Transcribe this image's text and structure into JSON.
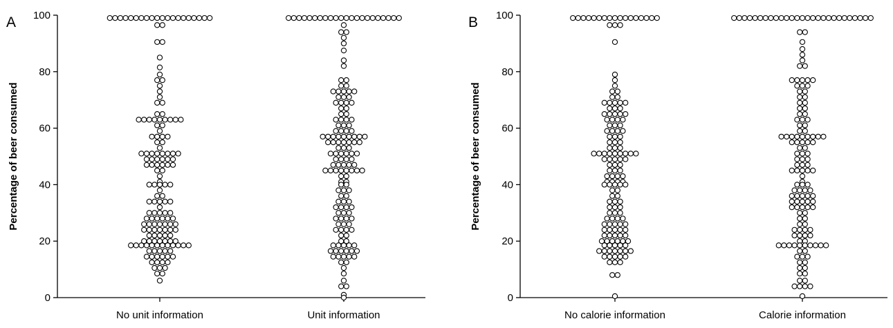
{
  "chart_data": [
    {
      "panel": "A",
      "type": "scatter",
      "ylabel": "Percentage of beer consumed",
      "ylim": [
        0,
        100
      ],
      "yticks": [
        "0",
        "20",
        "40",
        "60",
        "80",
        "100"
      ],
      "categories": [
        "No unit information",
        "Unit information"
      ],
      "series": [
        {
          "category": "No unit information",
          "values": [
            99,
            99,
            99,
            99,
            99,
            99,
            99,
            99,
            99,
            99,
            99,
            99,
            99,
            99,
            99,
            99,
            99,
            99,
            99,
            99,
            96.5,
            96.5,
            90.5,
            90.5,
            85,
            81.5,
            79,
            77,
            77,
            75,
            73,
            71,
            69,
            69,
            65,
            65,
            63,
            63,
            63,
            63,
            63,
            63,
            63,
            63,
            63,
            61,
            61,
            59,
            57,
            57,
            57,
            57,
            55,
            55,
            53,
            51,
            51,
            51,
            51,
            51,
            51,
            51,
            51,
            49,
            49,
            49,
            49,
            49,
            49,
            47,
            47,
            47,
            47,
            47,
            47,
            45,
            45,
            43,
            41,
            40,
            40,
            40,
            40,
            40,
            38,
            36,
            36,
            34,
            34,
            34,
            34,
            34,
            32,
            30,
            30,
            30,
            30,
            30,
            28,
            28,
            28,
            28,
            28,
            28,
            26,
            26,
            26,
            26,
            26,
            26,
            26,
            24,
            24,
            24,
            24,
            24,
            24,
            24,
            22,
            22,
            22,
            22,
            22,
            20,
            20,
            20,
            20,
            20,
            20,
            20,
            18.5,
            18.5,
            18.5,
            18.5,
            18.5,
            18.5,
            18.5,
            18.5,
            18.5,
            18.5,
            18.5,
            18.5,
            16.5,
            16.5,
            16.5,
            16.5,
            16.5,
            14.5,
            14.5,
            14.5,
            14.5,
            14.5,
            14.5,
            12.5,
            12.5,
            12.5,
            12.5,
            10.5,
            10.5,
            10.5,
            8.5,
            8.5,
            6
          ]
        },
        {
          "category": "Unit information",
          "values": [
            99,
            99,
            99,
            99,
            99,
            99,
            99,
            99,
            99,
            99,
            99,
            99,
            99,
            99,
            99,
            99,
            99,
            99,
            99,
            99,
            99,
            99,
            96.5,
            94,
            94,
            92,
            90,
            87.5,
            84,
            82,
            77,
            77,
            75,
            75,
            73,
            73,
            73,
            73,
            73,
            71,
            71,
            71,
            69,
            69,
            69,
            69,
            67,
            67,
            65,
            65,
            63,
            63,
            63,
            63,
            61,
            61,
            61,
            59,
            59,
            59,
            59,
            57,
            57,
            57,
            57,
            57,
            57,
            57,
            57,
            57,
            55,
            55,
            55,
            55,
            55,
            55,
            55,
            53,
            53,
            53,
            51,
            51,
            51,
            51,
            51,
            51,
            49,
            49,
            49,
            49,
            47,
            47,
            47,
            47,
            47,
            45,
            45,
            45,
            45,
            45,
            45,
            45,
            45,
            43,
            43,
            41,
            41,
            40,
            40,
            38,
            38,
            38,
            36,
            36,
            34,
            34,
            34,
            32,
            32,
            32,
            32,
            30,
            30,
            30,
            28,
            28,
            28,
            28,
            26,
            26,
            26,
            24,
            24,
            24,
            24,
            22,
            22,
            20,
            20,
            18.5,
            18.5,
            18.5,
            18.5,
            18.5,
            16.5,
            16.5,
            16.5,
            16.5,
            16.5,
            16.5,
            14.5,
            14.5,
            14.5,
            14.5,
            14.5,
            12.5,
            12.5,
            10.5,
            8.5,
            6,
            4,
            4,
            1,
            0
          ]
        }
      ]
    },
    {
      "panel": "B",
      "type": "scatter",
      "ylabel": "Percentage of beer consumed",
      "ylim": [
        0,
        100
      ],
      "yticks": [
        "0",
        "20",
        "40",
        "60",
        "80",
        "100"
      ],
      "categories": [
        "No calorie information",
        "Calorie information"
      ],
      "series": [
        {
          "category": "No calorie information",
          "values": [
            99,
            99,
            99,
            99,
            99,
            99,
            99,
            99,
            99,
            99,
            99,
            99,
            99,
            99,
            99,
            99,
            99,
            96.5,
            96.5,
            96.5,
            90.5,
            79,
            77,
            75,
            73,
            73,
            71,
            71,
            69,
            69,
            69,
            69,
            69,
            67,
            67,
            67,
            65,
            65,
            65,
            65,
            65,
            63,
            63,
            63,
            63,
            61,
            61,
            61,
            59,
            59,
            59,
            59,
            57,
            57,
            57,
            55,
            55,
            55,
            53,
            53,
            53,
            51,
            51,
            51,
            51,
            51,
            51,
            51,
            51,
            51,
            49,
            49,
            49,
            49,
            49,
            47,
            47,
            47,
            45,
            45,
            45,
            43,
            43,
            43,
            43,
            41,
            41,
            41,
            41,
            40,
            40,
            40,
            40,
            40,
            38,
            38,
            36,
            36,
            34,
            34,
            34,
            32,
            32,
            32,
            30,
            30,
            30,
            28,
            28,
            28,
            28,
            26,
            26,
            26,
            26,
            26,
            24,
            24,
            24,
            24,
            24,
            22,
            22,
            22,
            22,
            22,
            20,
            20,
            20,
            20,
            20,
            20,
            18.5,
            18.5,
            18.5,
            18.5,
            18.5,
            16.5,
            16.5,
            16.5,
            16.5,
            16.5,
            16.5,
            16.5,
            14.5,
            14.5,
            14.5,
            14.5,
            14.5,
            12.5,
            12.5,
            12.5,
            8,
            8,
            0.5
          ]
        },
        {
          "category": "Calorie information",
          "values": [
            99,
            99,
            99,
            99,
            99,
            99,
            99,
            99,
            99,
            99,
            99,
            99,
            99,
            99,
            99,
            99,
            99,
            99,
            99,
            99,
            99,
            99,
            99,
            99,
            99,
            99,
            99,
            94,
            94,
            90.5,
            88,
            86,
            84,
            82,
            82,
            77,
            77,
            77,
            77,
            77,
            75,
            75,
            75,
            73,
            73,
            71,
            71,
            69,
            69,
            67,
            67,
            65,
            65,
            63,
            63,
            63,
            61,
            61,
            59,
            59,
            57,
            57,
            57,
            57,
            57,
            57,
            57,
            57,
            57,
            55,
            55,
            55,
            55,
            55,
            53,
            53,
            51,
            51,
            51,
            49,
            49,
            49,
            47,
            47,
            47,
            45,
            45,
            45,
            45,
            45,
            43,
            41,
            40,
            40,
            40,
            38,
            38,
            38,
            38,
            36,
            36,
            36,
            36,
            36,
            34,
            34,
            34,
            34,
            34,
            32,
            32,
            32,
            32,
            32,
            30,
            30,
            28,
            28,
            26,
            26,
            24,
            24,
            24,
            24,
            22,
            22,
            22,
            22,
            20,
            20,
            18.5,
            18.5,
            18.5,
            18.5,
            18.5,
            18.5,
            18.5,
            18.5,
            18.5,
            18.5,
            16.5,
            16.5,
            14.5,
            14.5,
            14.5,
            12.5,
            12.5,
            10.5,
            10.5,
            8.5,
            8.5,
            6,
            6,
            4,
            4,
            4,
            4,
            0.5
          ]
        }
      ]
    }
  ]
}
